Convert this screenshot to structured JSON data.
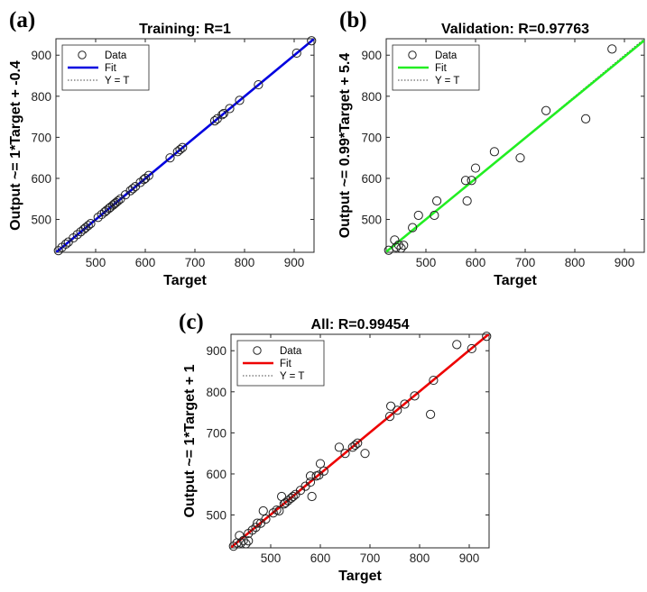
{
  "chart_data": [
    {
      "type": "scatter",
      "panel_letter": "(a)",
      "title": "Training: R=1",
      "xlabel": "Target",
      "ylabel": "Output ~= 1*Target + -0.4",
      "xlim": [
        420,
        940
      ],
      "ylim": [
        420,
        940
      ],
      "xticks": [
        500,
        600,
        700,
        800,
        900
      ],
      "yticks": [
        500,
        600,
        700,
        800,
        900
      ],
      "fit_color": "#0000e0",
      "fit": {
        "slope": 1,
        "intercept": -0.4
      },
      "legend": [
        "Data",
        "Fit",
        "Y = T"
      ],
      "legend_position": "top-left",
      "grid": false,
      "series": [
        {
          "name": "Data",
          "points": [
            [
              425,
              424
            ],
            [
              432,
              432
            ],
            [
              440,
              440
            ],
            [
              445,
              445
            ],
            [
              455,
              455
            ],
            [
              463,
              463
            ],
            [
              470,
              470
            ],
            [
              476,
              476
            ],
            [
              480,
              480
            ],
            [
              485,
              485
            ],
            [
              490,
              490
            ],
            [
              505,
              505
            ],
            [
              512,
              512
            ],
            [
              518,
              518
            ],
            [
              522,
              522
            ],
            [
              527,
              527
            ],
            [
              530,
              530
            ],
            [
              535,
              535
            ],
            [
              538,
              538
            ],
            [
              541,
              541
            ],
            [
              545,
              545
            ],
            [
              550,
              550
            ],
            [
              560,
              560
            ],
            [
              570,
              570
            ],
            [
              575,
              575
            ],
            [
              580,
              580
            ],
            [
              590,
              590
            ],
            [
              597,
              597
            ],
            [
              600,
              600
            ],
            [
              607,
              607
            ],
            [
              650,
              650
            ],
            [
              665,
              665
            ],
            [
              670,
              670
            ],
            [
              675,
              675
            ],
            [
              740,
              740
            ],
            [
              745,
              745
            ],
            [
              755,
              755
            ],
            [
              758,
              758
            ],
            [
              770,
              770
            ],
            [
              790,
              790
            ],
            [
              828,
              828
            ],
            [
              905,
              905
            ],
            [
              935,
              935
            ]
          ]
        }
      ]
    },
    {
      "type": "scatter",
      "panel_letter": "(b)",
      "title": "Validation: R=0.97763",
      "xlabel": "Target",
      "ylabel": "Output ~= 0.99*Target + 5.4",
      "xlim": [
        420,
        940
      ],
      "ylim": [
        420,
        940
      ],
      "xticks": [
        500,
        600,
        700,
        800,
        900
      ],
      "yticks": [
        500,
        600,
        700,
        800,
        900
      ],
      "fit_color": "#22ee22",
      "fit": {
        "slope": 0.99,
        "intercept": 5.4
      },
      "legend": [
        "Data",
        "Fit",
        "Y = T"
      ],
      "legend_position": "top-left",
      "grid": false,
      "series": [
        {
          "name": "Data",
          "points": [
            [
              425,
              425
            ],
            [
              437,
              450
            ],
            [
              440,
              432
            ],
            [
              445,
              438
            ],
            [
              450,
              430
            ],
            [
              455,
              437
            ],
            [
              473,
              480
            ],
            [
              485,
              510
            ],
            [
              517,
              510
            ],
            [
              522,
              545
            ],
            [
              580,
              595
            ],
            [
              583,
              545
            ],
            [
              592,
              595
            ],
            [
              600,
              625
            ],
            [
              638,
              665
            ],
            [
              690,
              650
            ],
            [
              742,
              765
            ],
            [
              822,
              745
            ],
            [
              875,
              915
            ]
          ]
        }
      ]
    },
    {
      "type": "scatter",
      "panel_letter": "(c)",
      "title": "All: R=0.99454",
      "xlabel": "Target",
      "ylabel": "Output ~= 1*Target + 1",
      "xlim": [
        420,
        940
      ],
      "ylim": [
        420,
        940
      ],
      "xticks": [
        500,
        600,
        700,
        800,
        900
      ],
      "yticks": [
        500,
        600,
        700,
        800,
        900
      ],
      "fit_color": "#ee0000",
      "fit": {
        "slope": 1,
        "intercept": 1
      },
      "legend": [
        "Data",
        "Fit",
        "Y = T"
      ],
      "legend_position": "top-left",
      "grid": false,
      "series": [
        {
          "name": "Data",
          "points": [
            [
              425,
              424
            ],
            [
              432,
              432
            ],
            [
              437,
              450
            ],
            [
              440,
              432
            ],
            [
              445,
              438
            ],
            [
              450,
              430
            ],
            [
              455,
              437
            ],
            [
              455,
              455
            ],
            [
              463,
              463
            ],
            [
              470,
              470
            ],
            [
              473,
              480
            ],
            [
              480,
              480
            ],
            [
              485,
              510
            ],
            [
              490,
              490
            ],
            [
              505,
              505
            ],
            [
              512,
              512
            ],
            [
              517,
              510
            ],
            [
              522,
              545
            ],
            [
              527,
              527
            ],
            [
              530,
              530
            ],
            [
              535,
              535
            ],
            [
              541,
              541
            ],
            [
              545,
              545
            ],
            [
              550,
              550
            ],
            [
              560,
              560
            ],
            [
              570,
              570
            ],
            [
              580,
              595
            ],
            [
              580,
              580
            ],
            [
              583,
              545
            ],
            [
              592,
              595
            ],
            [
              597,
              597
            ],
            [
              600,
              625
            ],
            [
              607,
              607
            ],
            [
              638,
              665
            ],
            [
              650,
              650
            ],
            [
              665,
              665
            ],
            [
              670,
              670
            ],
            [
              675,
              675
            ],
            [
              690,
              650
            ],
            [
              740,
              740
            ],
            [
              742,
              765
            ],
            [
              755,
              755
            ],
            [
              770,
              770
            ],
            [
              790,
              790
            ],
            [
              822,
              745
            ],
            [
              828,
              828
            ],
            [
              875,
              915
            ],
            [
              905,
              905
            ],
            [
              935,
              935
            ]
          ]
        }
      ]
    }
  ]
}
